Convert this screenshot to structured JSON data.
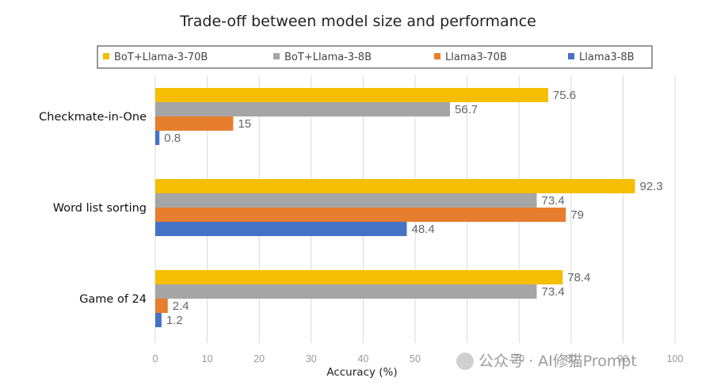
{
  "watermark": "公众号 · AI修猫Prompt",
  "chart_data": {
    "type": "bar",
    "orientation": "horizontal",
    "title": "Trade-off between model size and performance",
    "xlabel": "Accuracy (%)",
    "ylabel": "",
    "xlim": [
      0,
      100
    ],
    "xticks": [
      "0",
      "10",
      "20",
      "30",
      "40",
      "50",
      "60",
      "70",
      "80",
      "90",
      "100"
    ],
    "grid": "vertical",
    "legend_position": "top",
    "categories": [
      "Checkmate-in-One",
      "Word list sorting",
      "Game of 24"
    ],
    "series": [
      {
        "name": "BoT+Llama-3-70B",
        "color": "#F5BE00",
        "values": [
          75.6,
          92.3,
          78.4
        ]
      },
      {
        "name": "BoT+Llama-3-8B",
        "color": "#A5A5A5",
        "values": [
          56.7,
          73.4,
          73.4
        ]
      },
      {
        "name": "Llama3-70B",
        "color": "#E67E2E",
        "values": [
          15,
          79,
          2.4
        ]
      },
      {
        "name": "Llama3-8B",
        "color": "#4472C4",
        "values": [
          0.8,
          48.4,
          1.2
        ]
      }
    ]
  }
}
